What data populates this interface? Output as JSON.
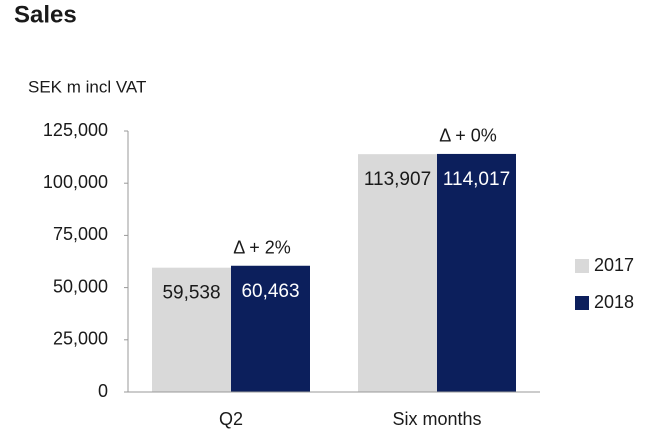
{
  "chart_data": {
    "type": "bar",
    "title": "Sales",
    "y_label": "SEK m incl VAT",
    "categories": [
      "Q2",
      "Six months"
    ],
    "series": [
      {
        "name": "2017",
        "color": "#d9d9d9",
        "values": [
          59538,
          113907
        ],
        "value_labels": [
          "59,538",
          "113,907"
        ]
      },
      {
        "name": "2018",
        "color": "#0c1f5c",
        "values": [
          60463,
          114017
        ],
        "value_labels": [
          "60,463",
          "114,017"
        ]
      }
    ],
    "annotations": [
      "Δ + 2%",
      "Δ + 0%"
    ],
    "ylim": [
      0,
      125000
    ],
    "yticks": [
      0,
      {
        "value": 25000,
        "label": "25,000"
      },
      {
        "value": 50000,
        "label": "50,000"
      },
      {
        "value": 75000,
        "label": "75,000"
      },
      {
        "value": 100000,
        "label": "100,000"
      },
      {
        "value": 125000,
        "label": "125,000"
      }
    ],
    "grid": false,
    "legend": "right"
  }
}
